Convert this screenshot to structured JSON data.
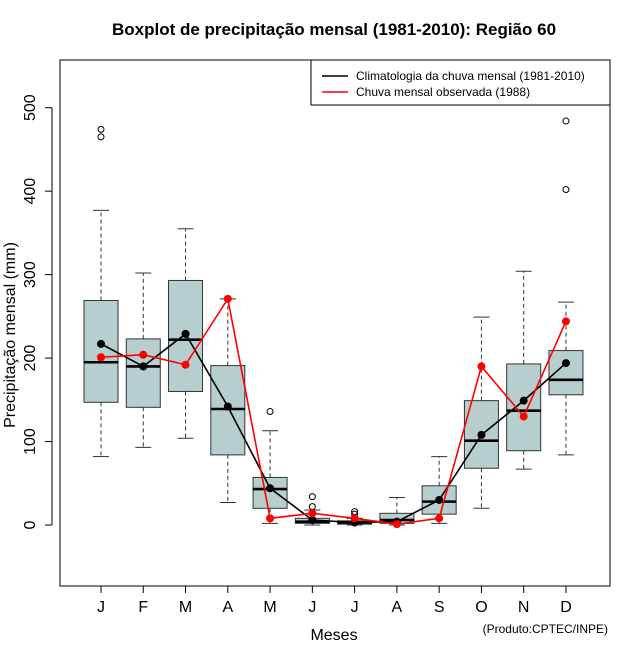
{
  "chart_data": {
    "type": "boxplot",
    "title": "Boxplot de precipitação mensal (1981-2010): Região 60",
    "xlabel": "Meses",
    "ylabel": "Precipitação mensal (mm)",
    "ylim": [
      -72,
      560
    ],
    "yticks": [
      0,
      100,
      200,
      300,
      400,
      500
    ],
    "categories": [
      "J",
      "F",
      "M",
      "A",
      "M",
      "J",
      "J",
      "A",
      "S",
      "O",
      "N",
      "D"
    ],
    "boxes": [
      {
        "whisker_low": 82,
        "q1": 147,
        "median": 195,
        "q3": 269,
        "whisker_high": 377,
        "outliers": [
          465,
          474
        ]
      },
      {
        "whisker_low": 93,
        "q1": 141,
        "median": 190,
        "q3": 223,
        "whisker_high": 302,
        "outliers": []
      },
      {
        "whisker_low": 104,
        "q1": 160,
        "median": 222,
        "q3": 293,
        "whisker_high": 355,
        "outliers": []
      },
      {
        "whisker_low": 27,
        "q1": 84,
        "median": 139,
        "q3": 191,
        "whisker_high": 271,
        "outliers": []
      },
      {
        "whisker_low": 2,
        "q1": 20,
        "median": 43,
        "q3": 57,
        "whisker_high": 113,
        "outliers": [
          136
        ]
      },
      {
        "whisker_low": 0,
        "q1": 2,
        "median": 4,
        "q3": 8,
        "whisker_high": 18,
        "outliers": [
          22,
          34
        ]
      },
      {
        "whisker_low": 0,
        "q1": 1,
        "median": 3,
        "q3": 5,
        "whisker_high": 8,
        "outliers": [
          13,
          16
        ]
      },
      {
        "whisker_low": 0,
        "q1": 2,
        "median": 6,
        "q3": 14,
        "whisker_high": 33,
        "outliers": []
      },
      {
        "whisker_low": 2,
        "q1": 13,
        "median": 28,
        "q3": 47,
        "whisker_high": 82,
        "outliers": []
      },
      {
        "whisker_low": 20,
        "q1": 68,
        "median": 101,
        "q3": 149,
        "whisker_high": 249,
        "outliers": []
      },
      {
        "whisker_low": 67,
        "q1": 89,
        "median": 137,
        "q3": 193,
        "whisker_high": 304,
        "outliers": []
      },
      {
        "whisker_low": 84,
        "q1": 156,
        "median": 174,
        "q3": 209,
        "whisker_high": 267,
        "outliers": [
          402,
          484
        ]
      }
    ],
    "series": [
      {
        "name": "Climatologia da chuva mensal (1981-2010)",
        "color": "#000000",
        "values": [
          217,
          190,
          229,
          142,
          44,
          6,
          3,
          4,
          30,
          108,
          149,
          194
        ]
      },
      {
        "name": "Chuva mensal observada (1988)",
        "color": "#ff0000",
        "values": [
          201,
          204,
          192,
          271,
          8,
          14,
          8,
          1,
          8,
          190,
          130,
          244
        ]
      }
    ],
    "box_fill": "#b7cece",
    "legend_position": "top-right",
    "grid": false
  },
  "credit": "(Produto:CPTEC/INPE)"
}
